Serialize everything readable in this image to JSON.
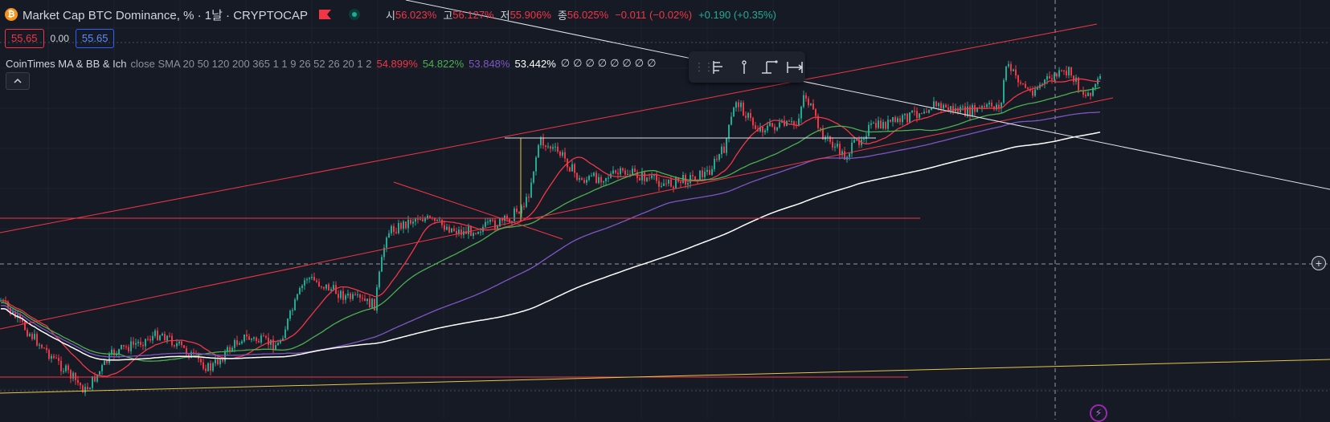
{
  "header": {
    "symbol_logo": "₿",
    "title": "Market Cap BTC Dominance, % · 1날 · CRYPTOCAP",
    "ohlc": {
      "open_label": "시",
      "open": "56.023%",
      "high_label": "고",
      "high": "56.127%",
      "low_label": "저",
      "low": "55.906%",
      "close_label": "종",
      "close": "56.025%",
      "change": "−0.011 (−0.02%)",
      "change2": "+0.190 (+0.35%)"
    }
  },
  "price_row": {
    "sell": "55.65",
    "spread": "0.00",
    "buy": "55.65"
  },
  "indicator": {
    "name": "CoinTimes MA & BB & Ich",
    "params": "close SMA 20 50 120 200 365 1 1 9 26 52 26 20 1 2",
    "values": [
      "54.899%",
      "54.822%",
      "53.848%",
      "53.442%"
    ],
    "nulls": "∅∅∅∅∅∅∅∅"
  },
  "toolbar": {
    "grip_icon": "drag-handle-icon",
    "icons": [
      "anchor-flag-icon",
      "bar-marker-icon",
      "price-range-icon",
      "date-range-icon"
    ]
  },
  "colors": {
    "background": "#161a25",
    "up": "#22ab94",
    "down": "#f23645",
    "ma_red": "#f23645",
    "ma_green": "#4caf50",
    "ma_purple": "#7e57c2",
    "ma_white": "#ffffff",
    "trend_yellow": "#e8c547"
  }
}
